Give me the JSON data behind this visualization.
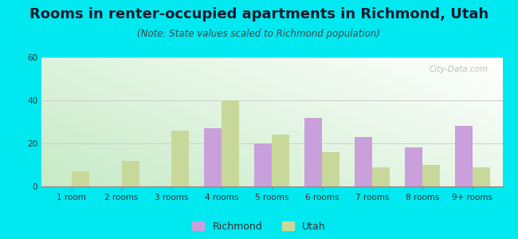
{
  "title": "Rooms in renter-occupied apartments in Richmond, Utah",
  "subtitle": "(Note: State values scaled to Richmond population)",
  "categories": [
    "1 room",
    "2 rooms",
    "3 rooms",
    "4 rooms",
    "5 rooms",
    "6 rooms",
    "7 rooms",
    "8 rooms",
    "9+ rooms"
  ],
  "richmond_values": [
    0,
    0,
    0,
    27,
    20,
    32,
    23,
    18,
    28
  ],
  "utah_values": [
    7,
    12,
    26,
    40,
    24,
    16,
    9,
    10,
    9
  ],
  "richmond_color": "#c9a0dc",
  "utah_color": "#c8d89a",
  "background_outer": "#00e8f0",
  "ylim": [
    0,
    60
  ],
  "yticks": [
    0,
    20,
    40,
    60
  ],
  "bar_width": 0.35,
  "title_fontsize": 13,
  "subtitle_fontsize": 8.5,
  "tick_fontsize": 7.5,
  "legend_fontsize": 9,
  "watermark": "City-Data.com"
}
